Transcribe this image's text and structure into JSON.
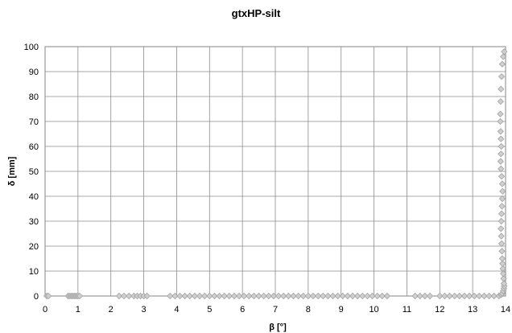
{
  "chart_data": {
    "type": "scatter",
    "title": "gtxHP-silt",
    "xlabel": "β [°]",
    "ylabel": "δ [mm]",
    "xlim": [
      0,
      14
    ],
    "ylim": [
      0,
      100
    ],
    "x_ticks": [
      "0",
      "1",
      "2",
      "3",
      "4",
      "5",
      "6",
      "7",
      "8",
      "9",
      "10",
      "11",
      "12",
      "13",
      "14"
    ],
    "y_ticks": [
      "0",
      "10",
      "20",
      "30",
      "40",
      "50",
      "60",
      "70",
      "80",
      "90",
      "100"
    ],
    "grid": true,
    "legend": "none",
    "marker": "diamond",
    "marker_color": "#cfcfcf",
    "series": [
      {
        "points": [
          [
            0.05,
            0.0
          ],
          [
            0.1,
            0.0
          ],
          [
            0.7,
            0.0
          ],
          [
            0.75,
            0.0
          ],
          [
            0.8,
            0.0
          ],
          [
            0.85,
            0.0
          ],
          [
            0.9,
            0.0
          ],
          [
            0.95,
            0.0
          ],
          [
            1.0,
            0.0
          ],
          [
            1.05,
            0.0
          ],
          [
            2.25,
            0.0
          ],
          [
            2.4,
            0.0
          ],
          [
            2.55,
            0.0
          ],
          [
            2.7,
            0.0
          ],
          [
            2.8,
            0.0
          ],
          [
            2.9,
            0.0
          ],
          [
            3.0,
            0.0
          ],
          [
            3.1,
            0.0
          ],
          [
            3.8,
            0.0
          ],
          [
            3.95,
            0.0
          ],
          [
            4.1,
            0.0
          ],
          [
            4.25,
            0.0
          ],
          [
            4.4,
            0.0
          ],
          [
            4.55,
            0.0
          ],
          [
            4.7,
            0.0
          ],
          [
            4.85,
            0.0
          ],
          [
            5.0,
            0.0
          ],
          [
            5.15,
            0.0
          ],
          [
            5.3,
            0.0
          ],
          [
            5.45,
            0.0
          ],
          [
            5.6,
            0.0
          ],
          [
            5.75,
            0.0
          ],
          [
            5.9,
            0.0
          ],
          [
            6.05,
            0.0
          ],
          [
            6.2,
            0.0
          ],
          [
            6.35,
            0.0
          ],
          [
            6.5,
            0.0
          ],
          [
            6.65,
            0.0
          ],
          [
            6.8,
            0.0
          ],
          [
            6.95,
            0.0
          ],
          [
            7.1,
            0.0
          ],
          [
            7.25,
            0.0
          ],
          [
            7.4,
            0.0
          ],
          [
            7.55,
            0.0
          ],
          [
            7.7,
            0.0
          ],
          [
            7.85,
            0.0
          ],
          [
            8.0,
            0.0
          ],
          [
            8.15,
            0.0
          ],
          [
            8.3,
            0.0
          ],
          [
            8.45,
            0.0
          ],
          [
            8.6,
            0.0
          ],
          [
            8.75,
            0.0
          ],
          [
            8.9,
            0.0
          ],
          [
            9.05,
            0.0
          ],
          [
            9.2,
            0.0
          ],
          [
            9.35,
            0.0
          ],
          [
            9.5,
            0.0
          ],
          [
            9.65,
            0.0
          ],
          [
            9.8,
            0.0
          ],
          [
            9.95,
            0.0
          ],
          [
            10.1,
            0.0
          ],
          [
            10.25,
            0.0
          ],
          [
            10.4,
            0.0
          ],
          [
            11.25,
            0.0
          ],
          [
            11.4,
            0.0
          ],
          [
            11.55,
            0.0
          ],
          [
            11.7,
            0.0
          ],
          [
            12.0,
            0.0
          ],
          [
            12.15,
            0.0
          ],
          [
            12.3,
            0.0
          ],
          [
            12.45,
            0.0
          ],
          [
            12.6,
            0.0
          ],
          [
            12.75,
            0.0
          ],
          [
            12.9,
            0.0
          ],
          [
            13.05,
            0.0
          ],
          [
            13.2,
            0.0
          ],
          [
            13.35,
            0.0
          ],
          [
            13.5,
            0.0
          ],
          [
            13.65,
            0.0
          ],
          [
            13.8,
            0.0
          ],
          [
            13.87,
            0.5
          ],
          [
            13.9,
            1.0
          ],
          [
            13.93,
            2.0
          ],
          [
            13.95,
            3.0
          ],
          [
            13.96,
            4.0
          ],
          [
            13.95,
            5.0
          ],
          [
            13.94,
            7.0
          ],
          [
            13.93,
            9.0
          ],
          [
            13.92,
            11.0
          ],
          [
            13.91,
            13.0
          ],
          [
            13.9,
            15.0
          ],
          [
            13.89,
            18.0
          ],
          [
            13.88,
            21.0
          ],
          [
            13.87,
            24.0
          ],
          [
            13.86,
            27.0
          ],
          [
            13.87,
            30.0
          ],
          [
            13.88,
            33.0
          ],
          [
            13.89,
            36.0
          ],
          [
            13.9,
            39.0
          ],
          [
            13.91,
            42.0
          ],
          [
            13.9,
            45.0
          ],
          [
            13.88,
            48.0
          ],
          [
            13.86,
            51.0
          ],
          [
            13.85,
            54.0
          ],
          [
            13.86,
            57.0
          ],
          [
            13.87,
            60.0
          ],
          [
            13.86,
            63.0
          ],
          [
            13.85,
            66.0
          ],
          [
            13.84,
            70.0
          ],
          [
            13.84,
            73.0
          ],
          [
            13.85,
            78.0
          ],
          [
            13.86,
            83.0
          ],
          [
            13.88,
            88.0
          ],
          [
            13.9,
            93.0
          ],
          [
            13.93,
            96.0
          ],
          [
            13.96,
            98.0
          ]
        ]
      }
    ]
  }
}
